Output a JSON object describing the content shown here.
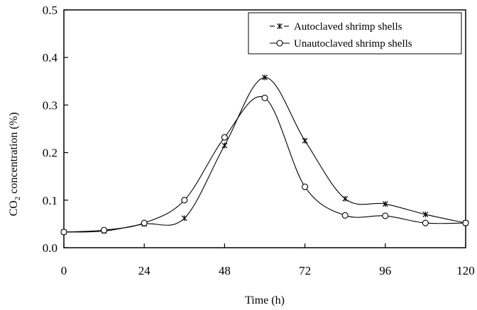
{
  "chart_data": {
    "type": "line",
    "xlabel": "Time (h)",
    "ylabel_parts": [
      "CO",
      "2",
      " concentration (%)"
    ],
    "xlim": [
      0,
      120
    ],
    "ylim": [
      0,
      0.5
    ],
    "xticks": [
      0,
      24,
      48,
      72,
      96,
      120
    ],
    "yticks": [
      0.0,
      0.1,
      0.2,
      0.3,
      0.4,
      0.5
    ],
    "xtick_labels": [
      "0",
      "24",
      "48",
      "72",
      "96",
      "120"
    ],
    "ytick_labels": [
      "0.0",
      "0.1",
      "0.2",
      "0.3",
      "0.4",
      "0.5"
    ],
    "grid": false,
    "legend_position": "top-right",
    "series": [
      {
        "name": "Autoclaved shrimp shells",
        "marker": "asterisk",
        "x": [
          0,
          12,
          24,
          36,
          48,
          60,
          72,
          84,
          96,
          108,
          120
        ],
        "y": [
          0.033,
          0.035,
          0.05,
          0.062,
          0.215,
          0.358,
          0.225,
          0.103,
          0.092,
          0.07,
          0.052
        ]
      },
      {
        "name": "Unautoclaved shrimp shells",
        "marker": "circle",
        "x": [
          0,
          12,
          24,
          36,
          48,
          60,
          72,
          84,
          96,
          108,
          120
        ],
        "y": [
          0.033,
          0.037,
          0.052,
          0.1,
          0.232,
          0.315,
          0.128,
          0.068,
          0.067,
          0.052,
          0.052
        ]
      }
    ]
  }
}
